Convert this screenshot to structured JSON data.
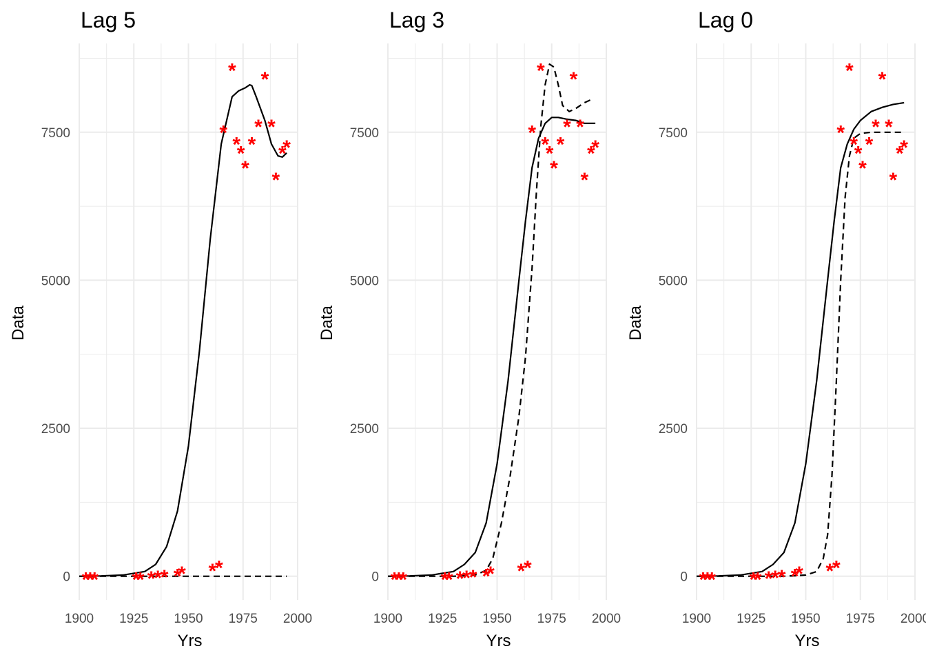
{
  "chart_data": [
    {
      "type": "line",
      "title": "Lag 5",
      "xlabel": "Yrs",
      "ylabel": "Data",
      "xlim": [
        1900,
        2000
      ],
      "ylim": [
        -400,
        9000
      ],
      "xticks": [
        1900,
        1925,
        1950,
        1975,
        2000
      ],
      "yticks": [
        0,
        2500,
        5000,
        7500
      ],
      "grid": true,
      "colors": {
        "points": "#ff0000",
        "solid": "#000000",
        "dashed": "#000000"
      },
      "points": {
        "marker": "*",
        "x": [
          1903,
          1905,
          1907,
          1926,
          1928,
          1933,
          1936,
          1939,
          1945,
          1947,
          1961,
          1964,
          1966,
          1970,
          1972,
          1974,
          1976,
          1979,
          1982,
          1985,
          1988,
          1990,
          1993,
          1995
        ],
        "y": [
          0,
          0,
          0,
          0,
          0,
          20,
          30,
          40,
          60,
          100,
          150,
          200,
          7550,
          8600,
          7350,
          7200,
          6950,
          7350,
          7650,
          8450,
          7650,
          6750,
          7200,
          7300
        ]
      },
      "series": [
        {
          "style": "solid",
          "x": [
            1900,
            1910,
            1920,
            1930,
            1935,
            1940,
            1945,
            1950,
            1955,
            1960,
            1965,
            1970,
            1973,
            1976,
            1978,
            1979,
            1981,
            1985,
            1988,
            1991,
            1993,
            1995
          ],
          "y": [
            0,
            5,
            20,
            80,
            200,
            500,
            1100,
            2200,
            3800,
            5700,
            7300,
            8100,
            8200,
            8250,
            8300,
            8290,
            8100,
            7700,
            7300,
            7100,
            7080,
            7150
          ]
        },
        {
          "style": "dashed",
          "x": [
            1900,
            1995
          ],
          "y": [
            0,
            0
          ]
        }
      ]
    },
    {
      "type": "line",
      "title": "Lag 3",
      "xlabel": "Yrs",
      "ylabel": "Data",
      "xlim": [
        1900,
        2000
      ],
      "ylim": [
        -400,
        9000
      ],
      "xticks": [
        1900,
        1925,
        1950,
        1975,
        2000
      ],
      "yticks": [
        0,
        2500,
        5000,
        7500
      ],
      "grid": true,
      "colors": {
        "points": "#ff0000",
        "solid": "#000000",
        "dashed": "#000000"
      },
      "points": {
        "marker": "*",
        "x": [
          1903,
          1905,
          1907,
          1926,
          1928,
          1933,
          1936,
          1939,
          1945,
          1947,
          1961,
          1964,
          1966,
          1970,
          1972,
          1974,
          1976,
          1979,
          1982,
          1985,
          1988,
          1990,
          1993,
          1995
        ],
        "y": [
          0,
          0,
          0,
          0,
          0,
          20,
          30,
          40,
          60,
          100,
          150,
          200,
          7550,
          8600,
          7350,
          7200,
          6950,
          7350,
          7650,
          8450,
          7650,
          6750,
          7200,
          7300
        ]
      },
      "series": [
        {
          "style": "solid",
          "x": [
            1900,
            1910,
            1920,
            1930,
            1935,
            1940,
            1945,
            1950,
            1955,
            1960,
            1963,
            1966,
            1969,
            1972,
            1975,
            1978,
            1982,
            1986,
            1990,
            1995
          ],
          "y": [
            0,
            5,
            20,
            80,
            200,
            400,
            900,
            1900,
            3300,
            5000,
            6000,
            6900,
            7400,
            7650,
            7750,
            7750,
            7720,
            7700,
            7650,
            7650
          ]
        },
        {
          "style": "dashed",
          "x": [
            1900,
            1930,
            1940,
            1945,
            1948,
            1952,
            1956,
            1960,
            1963,
            1966,
            1968,
            1970,
            1972,
            1974,
            1976,
            1978,
            1980,
            1983,
            1986,
            1990,
            1993
          ],
          "y": [
            0,
            0,
            20,
            100,
            300,
            900,
            1700,
            2700,
            3700,
            5200,
            6500,
            7600,
            8300,
            8650,
            8600,
            8300,
            7950,
            7850,
            7900,
            8000,
            8050
          ]
        }
      ]
    },
    {
      "type": "line",
      "title": "Lag 0",
      "xlabel": "Yrs",
      "ylabel": "Data",
      "xlim": [
        1900,
        2000
      ],
      "ylim": [
        -400,
        9000
      ],
      "xticks": [
        1900,
        1925,
        1950,
        1975,
        2000
      ],
      "yticks": [
        0,
        2500,
        5000,
        7500
      ],
      "grid": true,
      "colors": {
        "points": "#ff0000",
        "solid": "#000000",
        "dashed": "#000000"
      },
      "points": {
        "marker": "*",
        "x": [
          1903,
          1905,
          1907,
          1926,
          1928,
          1933,
          1936,
          1939,
          1945,
          1947,
          1961,
          1964,
          1966,
          1970,
          1972,
          1974,
          1976,
          1979,
          1982,
          1985,
          1988,
          1990,
          1993,
          1995
        ],
        "y": [
          0,
          0,
          0,
          0,
          0,
          20,
          30,
          40,
          60,
          100,
          150,
          200,
          7550,
          8600,
          7350,
          7200,
          6950,
          7350,
          7650,
          8450,
          7650,
          6750,
          7200,
          7300
        ]
      },
      "series": [
        {
          "style": "solid",
          "x": [
            1900,
            1910,
            1920,
            1930,
            1935,
            1940,
            1945,
            1950,
            1955,
            1960,
            1963,
            1966,
            1969,
            1972,
            1975,
            1980,
            1985,
            1990,
            1995
          ],
          "y": [
            0,
            5,
            20,
            80,
            200,
            400,
            900,
            1900,
            3300,
            5000,
            6000,
            6900,
            7300,
            7550,
            7700,
            7850,
            7920,
            7970,
            8000
          ]
        },
        {
          "style": "dashed",
          "x": [
            1900,
            1930,
            1940,
            1950,
            1955,
            1958,
            1960,
            1962,
            1964,
            1966,
            1968,
            1970,
            1972,
            1975,
            1980,
            1985,
            1990,
            1995
          ],
          "y": [
            0,
            0,
            0,
            20,
            80,
            300,
            700,
            1700,
            3300,
            5000,
            6400,
            7100,
            7400,
            7480,
            7500,
            7500,
            7500,
            7500
          ]
        }
      ]
    }
  ]
}
